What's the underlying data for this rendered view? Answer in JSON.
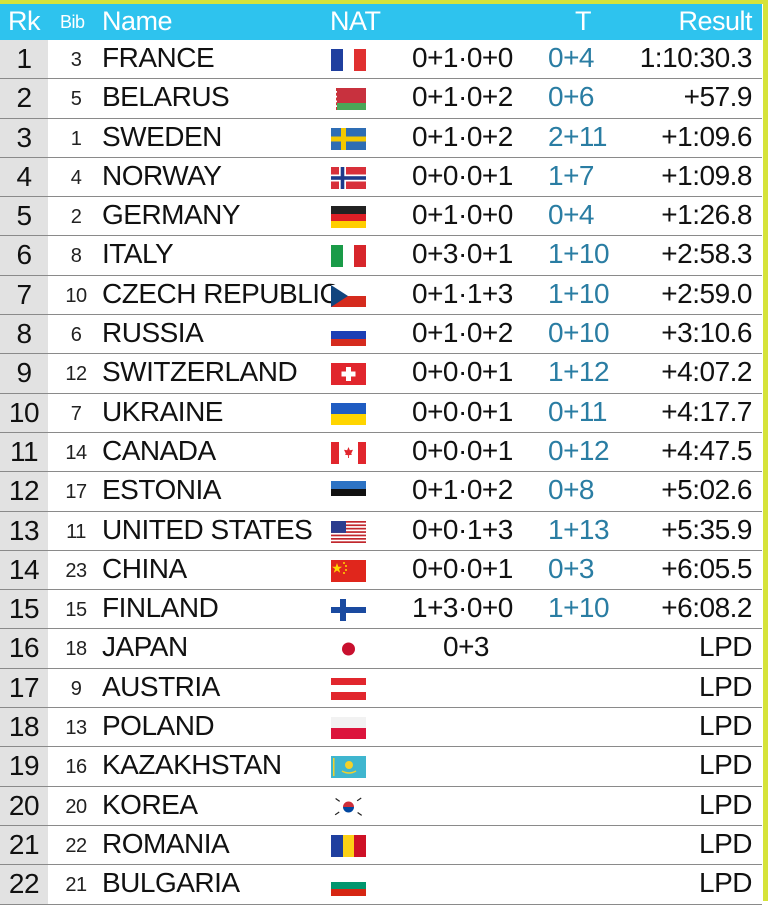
{
  "header": {
    "rank": "Rk",
    "bib": "Bib",
    "name": "Name",
    "nat": "NAT",
    "t": "T",
    "result": "Result"
  },
  "colors": {
    "header_bg": "#2ec3ee",
    "accent_line": "#d6e33a",
    "shooting_text": "#2a7da3",
    "rank_bg": "#e2e2e2"
  },
  "rows": [
    {
      "rank": "1",
      "bib": "3",
      "name": "FRANCE",
      "flag": "france-flag-icon",
      "pen": "0+1·0+0",
      "t": "0+4",
      "result": "1:10:30.3"
    },
    {
      "rank": "2",
      "bib": "5",
      "name": "BELARUS",
      "flag": "belarus-flag-icon",
      "pen": "0+1·0+2",
      "t": "0+6",
      "result": "+57.9"
    },
    {
      "rank": "3",
      "bib": "1",
      "name": "SWEDEN",
      "flag": "sweden-flag-icon",
      "pen": "0+1·0+2",
      "t": "2+11",
      "result": "+1:09.6"
    },
    {
      "rank": "4",
      "bib": "4",
      "name": "NORWAY",
      "flag": "norway-flag-icon",
      "pen": "0+0·0+1",
      "t": "1+7",
      "result": "+1:09.8"
    },
    {
      "rank": "5",
      "bib": "2",
      "name": "GERMANY",
      "flag": "germany-flag-icon",
      "pen": "0+1·0+0",
      "t": "0+4",
      "result": "+1:26.8"
    },
    {
      "rank": "6",
      "bib": "8",
      "name": "ITALY",
      "flag": "italy-flag-icon",
      "pen": "0+3·0+1",
      "t": "1+10",
      "result": "+2:58.3"
    },
    {
      "rank": "7",
      "bib": "10",
      "name": "CZECH REPUBLIC",
      "flag": "czech-flag-icon",
      "pen": "0+1·1+3",
      "t": "1+10",
      "result": "+2:59.0"
    },
    {
      "rank": "8",
      "bib": "6",
      "name": "RUSSIA",
      "flag": "russia-flag-icon",
      "pen": "0+1·0+2",
      "t": "0+10",
      "result": "+3:10.6"
    },
    {
      "rank": "9",
      "bib": "12",
      "name": "SWITZERLAND",
      "flag": "switzerland-flag-icon",
      "pen": "0+0·0+1",
      "t": "1+12",
      "result": "+4:07.2"
    },
    {
      "rank": "10",
      "bib": "7",
      "name": "UKRAINE",
      "flag": "ukraine-flag-icon",
      "pen": "0+0·0+1",
      "t": "0+11",
      "result": "+4:17.7"
    },
    {
      "rank": "11",
      "bib": "14",
      "name": "CANADA",
      "flag": "canada-flag-icon",
      "pen": "0+0·0+1",
      "t": "0+12",
      "result": "+4:47.5"
    },
    {
      "rank": "12",
      "bib": "17",
      "name": "ESTONIA",
      "flag": "estonia-flag-icon",
      "pen": "0+1·0+2",
      "t": "0+8",
      "result": "+5:02.6"
    },
    {
      "rank": "13",
      "bib": "11",
      "name": "UNITED STATES",
      "flag": "usa-flag-icon",
      "pen": "0+0·1+3",
      "t": "1+13",
      "result": "+5:35.9"
    },
    {
      "rank": "14",
      "bib": "23",
      "name": "CHINA",
      "flag": "china-flag-icon",
      "pen": "0+0·0+1",
      "t": "0+3",
      "result": "+6:05.5"
    },
    {
      "rank": "15",
      "bib": "15",
      "name": "FINLAND",
      "flag": "finland-flag-icon",
      "pen": "1+3·0+0",
      "t": "1+10",
      "result": "+6:08.2"
    },
    {
      "rank": "16",
      "bib": "18",
      "name": "JAPAN",
      "flag": "japan-flag-icon",
      "pen": "0+3",
      "t": "",
      "result": "LPD"
    },
    {
      "rank": "17",
      "bib": "9",
      "name": "AUSTRIA",
      "flag": "austria-flag-icon",
      "pen": "",
      "t": "",
      "result": "LPD"
    },
    {
      "rank": "18",
      "bib": "13",
      "name": "POLAND",
      "flag": "poland-flag-icon",
      "pen": "",
      "t": "",
      "result": "LPD"
    },
    {
      "rank": "19",
      "bib": "16",
      "name": "KAZAKHSTAN",
      "flag": "kazakhstan-flag-icon",
      "pen": "",
      "t": "",
      "result": "LPD"
    },
    {
      "rank": "20",
      "bib": "20",
      "name": "KOREA",
      "flag": "korea-flag-icon",
      "pen": "",
      "t": "",
      "result": "LPD"
    },
    {
      "rank": "21",
      "bib": "22",
      "name": "ROMANIA",
      "flag": "romania-flag-icon",
      "pen": "",
      "t": "",
      "result": "LPD"
    },
    {
      "rank": "22",
      "bib": "21",
      "name": "BULGARIA",
      "flag": "bulgaria-flag-icon",
      "pen": "",
      "t": "",
      "result": "LPD"
    }
  ]
}
